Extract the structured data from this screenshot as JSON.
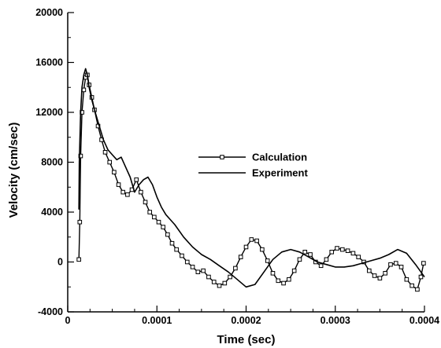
{
  "chart_data": {
    "type": "line",
    "title": "",
    "xlabel": "Time (sec)",
    "ylabel": "Velocity (cm/sec)",
    "xlim": [
      0,
      0.0004
    ],
    "ylim": [
      -4000,
      20000
    ],
    "x_ticks": [
      0,
      0.0001,
      0.0002,
      0.0003,
      0.0004
    ],
    "x_tick_labels": [
      "0",
      "0.0001",
      "0.0002",
      "0.0003",
      "0.0004"
    ],
    "y_ticks": [
      -4000,
      0,
      4000,
      8000,
      12000,
      16000,
      20000
    ],
    "y_tick_labels": [
      "-4000",
      "0",
      "4000",
      "8000",
      "12000",
      "16000",
      "20000"
    ],
    "grid": false,
    "legend_position": "center-right",
    "series": [
      {
        "name": "Calculation",
        "style": "line-with-square-markers",
        "color": "#000000",
        "x": [
          1.25e-05,
          1.35e-05,
          1.45e-05,
          1.6e-05,
          1.8e-05,
          2e-05,
          2.2e-05,
          2.4e-05,
          2.7e-05,
          3e-05,
          3.4e-05,
          3.8e-05,
          4.2e-05,
          4.7e-05,
          5.2e-05,
          5.7e-05,
          6.2e-05,
          6.7e-05,
          7.2e-05,
          7.7e-05,
          8.2e-05,
          8.7e-05,
          9.2e-05,
          9.7e-05,
          0.000102,
          0.000107,
          0.000112,
          0.000117,
          0.000122,
          0.000128,
          0.000134,
          0.00014,
          0.000146,
          0.000152,
          0.000158,
          0.000164,
          0.00017,
          0.000176,
          0.000182,
          0.000188,
          0.000194,
          0.0002,
          0.000206,
          0.000212,
          0.000218,
          0.000224,
          0.00023,
          0.000236,
          0.000242,
          0.000248,
          0.000254,
          0.00026,
          0.000266,
          0.000272,
          0.000278,
          0.000284,
          0.00029,
          0.000296,
          0.000302,
          0.000308,
          0.000314,
          0.00032,
          0.000326,
          0.000332,
          0.000338,
          0.000344,
          0.00035,
          0.000356,
          0.000362,
          0.000368,
          0.000374,
          0.00038,
          0.000386,
          0.000392,
          0.000396,
          0.000399
        ],
        "y": [
          200,
          3200,
          8500,
          12000,
          13800,
          14800,
          15000,
          14200,
          13200,
          12200,
          10900,
          9800,
          8800,
          8000,
          7200,
          6200,
          5600,
          5400,
          5800,
          6600,
          5600,
          4800,
          4000,
          3600,
          3200,
          2800,
          2200,
          1500,
          1000,
          500,
          0,
          -400,
          -800,
          -700,
          -1200,
          -1600,
          -1900,
          -1700,
          -1200,
          -500,
          400,
          1200,
          1800,
          1700,
          1000,
          100,
          -900,
          -1500,
          -1700,
          -1400,
          -700,
          200,
          800,
          600,
          0,
          -300,
          200,
          800,
          1100,
          1000,
          900,
          700,
          400,
          0,
          -700,
          -1100,
          -1300,
          -900,
          -200,
          -100,
          -400,
          -1400,
          -1900,
          -2200,
          -1200,
          -100
        ]
      },
      {
        "name": "Experiment",
        "style": "line",
        "color": "#000000",
        "x": [
          1.25e-05,
          1.3e-05,
          1.45e-05,
          1.6e-05,
          1.8e-05,
          2e-05,
          2.2e-05,
          2.4e-05,
          2.7e-05,
          3e-05,
          3.5e-05,
          4e-05,
          4.5e-05,
          5e-05,
          5.5e-05,
          6e-05,
          6.5e-05,
          7e-05,
          7.5e-05,
          8e-05,
          8.5e-05,
          9e-05,
          9.5e-05,
          0.0001,
          0.000105,
          0.00011,
          0.000115,
          0.00012,
          0.00013,
          0.00014,
          0.00015,
          0.00016,
          0.00017,
          0.00018,
          0.00019,
          0.0002,
          0.00021,
          0.00022,
          0.00023,
          0.00024,
          0.00025,
          0.00026,
          0.00027,
          0.00028,
          0.00029,
          0.0003,
          0.00031,
          0.00032,
          0.00033,
          0.00034,
          0.00035,
          0.00036,
          0.00037,
          0.00038,
          0.00039,
          0.000396,
          0.0004
        ],
        "y": [
          4200,
          8000,
          12000,
          14000,
          15000,
          15500,
          15000,
          14000,
          13000,
          12200,
          11000,
          9800,
          9000,
          8600,
          8200,
          8400,
          7600,
          6800,
          5600,
          6200,
          6600,
          6800,
          6200,
          5200,
          4400,
          3800,
          3400,
          3000,
          2000,
          1200,
          600,
          200,
          -300,
          -800,
          -1400,
          -2000,
          -1800,
          -800,
          200,
          800,
          1000,
          800,
          400,
          0,
          -200,
          -400,
          -400,
          -300,
          -100,
          100,
          300,
          600,
          1000,
          700,
          -200,
          -800,
          -1200
        ]
      }
    ]
  }
}
